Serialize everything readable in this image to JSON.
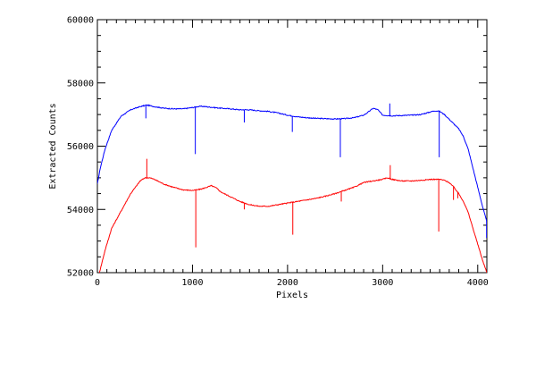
{
  "chart_data": {
    "type": "line",
    "title": "",
    "xlabel": "Pixels",
    "ylabel": "Extracted Counts",
    "xlim": [
      0,
      4096
    ],
    "ylim": [
      52000,
      60000
    ],
    "x_ticks": [
      0,
      1000,
      2000,
      3000,
      4000
    ],
    "x_tick_labels": [
      "0",
      "1000",
      "2000",
      "3000",
      "4000"
    ],
    "y_ticks": [
      52000,
      54000,
      56000,
      58000,
      60000
    ],
    "y_tick_labels": [
      "52000",
      "54000",
      "56000",
      "58000",
      "60000"
    ],
    "grid": false,
    "legend": "none",
    "series": [
      {
        "color": "#0000ff",
        "x": [
          0,
          30,
          80,
          150,
          250,
          350,
          450,
          520,
          600,
          700,
          800,
          900,
          1000,
          1050,
          1100,
          1200,
          1300,
          1400,
          1500,
          1600,
          1700,
          1800,
          1900,
          2000,
          2100,
          2200,
          2300,
          2400,
          2500,
          2600,
          2700,
          2800,
          2850,
          2900,
          2950,
          3000,
          3100,
          3200,
          3300,
          3400,
          3500,
          3550,
          3600,
          3650,
          3700,
          3750,
          3800,
          3850,
          3900,
          3950,
          4000,
          4050,
          4096
        ],
        "y": [
          54800,
          55300,
          55900,
          56500,
          56950,
          57150,
          57250,
          57300,
          57250,
          57200,
          57180,
          57180,
          57220,
          57250,
          57260,
          57230,
          57200,
          57180,
          57150,
          57150,
          57120,
          57100,
          57050,
          56980,
          56930,
          56900,
          56880,
          56870,
          56860,
          56870,
          56900,
          56980,
          57080,
          57200,
          57150,
          56980,
          56960,
          56970,
          56980,
          57000,
          57080,
          57120,
          57100,
          57000,
          56850,
          56700,
          56550,
          56300,
          55900,
          55300,
          54700,
          54100,
          53600
        ],
        "spikes": [
          {
            "x": 510,
            "y": 56880
          },
          {
            "x": 1030,
            "y": 55750
          },
          {
            "x": 1545,
            "y": 56750
          },
          {
            "x": 2050,
            "y": 56450
          },
          {
            "x": 2555,
            "y": 55650
          },
          {
            "x": 3075,
            "y": 57350
          },
          {
            "x": 3595,
            "y": 55650
          },
          {
            "x": 4093,
            "y": 53100
          }
        ]
      },
      {
        "color": "#ff0000",
        "x": [
          0,
          30,
          80,
          150,
          250,
          350,
          450,
          500,
          550,
          600,
          700,
          800,
          900,
          1000,
          1050,
          1100,
          1150,
          1200,
          1250,
          1300,
          1400,
          1500,
          1600,
          1700,
          1800,
          1900,
          2000,
          2100,
          2200,
          2300,
          2400,
          2500,
          2600,
          2700,
          2800,
          2900,
          3000,
          3050,
          3100,
          3200,
          3300,
          3400,
          3500,
          3550,
          3600,
          3650,
          3700,
          3750,
          3800,
          3850,
          3900,
          3950,
          4000,
          4050,
          4096
        ],
        "y": [
          51800,
          52100,
          52700,
          53400,
          53950,
          54500,
          54900,
          55000,
          55000,
          54950,
          54800,
          54700,
          54620,
          54600,
          54620,
          54650,
          54700,
          54750,
          54680,
          54550,
          54400,
          54250,
          54150,
          54100,
          54100,
          54150,
          54200,
          54250,
          54300,
          54350,
          54420,
          54500,
          54600,
          54700,
          54850,
          54900,
          54950,
          55000,
          54950,
          54900,
          54900,
          54920,
          54950,
          54950,
          54950,
          54920,
          54850,
          54700,
          54500,
          54250,
          53900,
          53400,
          52900,
          52400,
          52000
        ],
        "spikes": [
          {
            "x": 520,
            "y": 55600
          },
          {
            "x": 1035,
            "y": 52800
          },
          {
            "x": 1545,
            "y": 54000
          },
          {
            "x": 2055,
            "y": 53200
          },
          {
            "x": 2565,
            "y": 54250
          },
          {
            "x": 3080,
            "y": 55400
          },
          {
            "x": 3590,
            "y": 53300
          },
          {
            "x": 3745,
            "y": 54300
          },
          {
            "x": 3790,
            "y": 54350
          }
        ]
      }
    ]
  }
}
